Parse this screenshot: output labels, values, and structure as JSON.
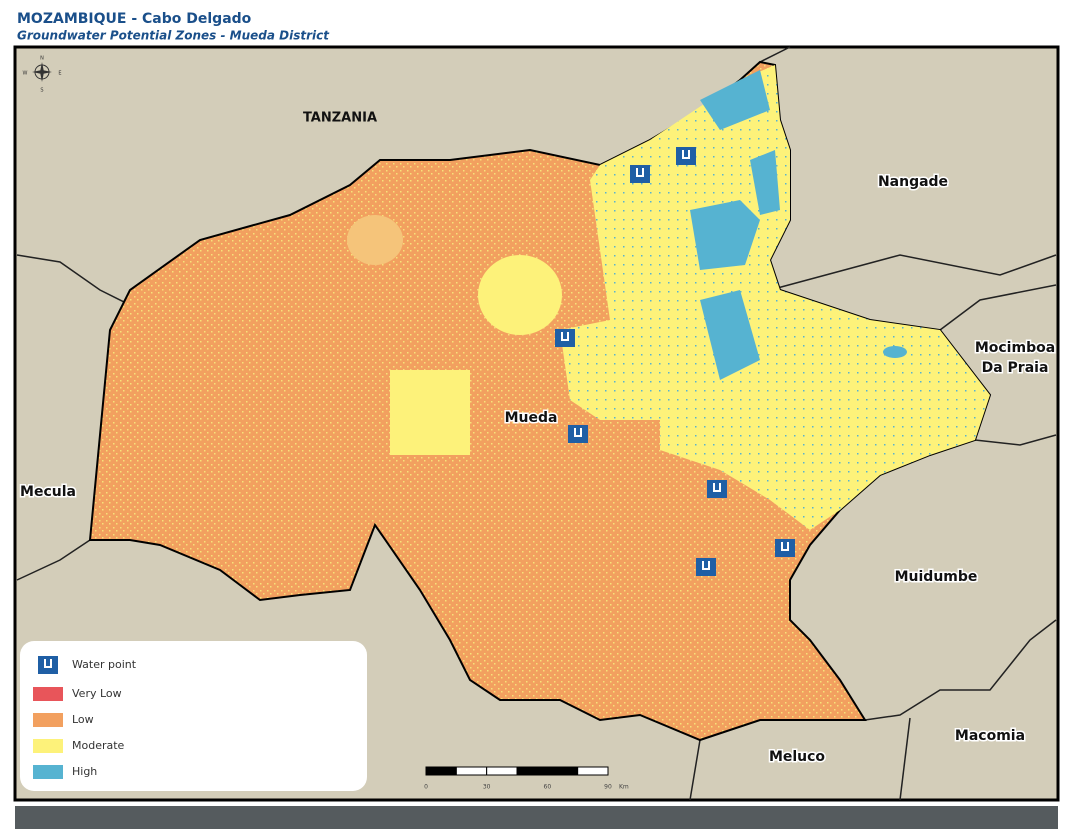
{
  "header": {
    "title": "MOZAMBIQUE - Cabo Delgado",
    "subtitle": "Groundwater Potential Zones - Mueda District"
  },
  "compass": {
    "n": "N",
    "e": "E",
    "s": "S",
    "w": "W"
  },
  "places": [
    {
      "label": "TANZANIA"
    },
    {
      "label": "Nangade"
    },
    {
      "label": "Mocimboa"
    },
    {
      "label": "Da Praia"
    },
    {
      "label": "Mueda"
    },
    {
      "label": "Mecula"
    },
    {
      "label": "Muidumbe"
    },
    {
      "label": "Macomia"
    },
    {
      "label": "Meluco"
    }
  ],
  "legend": [
    {
      "label": "Water point"
    },
    {
      "label": "Very Low"
    },
    {
      "label": "Low"
    },
    {
      "label": "Moderate"
    },
    {
      "label": "High"
    }
  ],
  "scale_bar": {
    "ticks": [
      0,
      30,
      60,
      90
    ],
    "unit": "Km"
  }
}
